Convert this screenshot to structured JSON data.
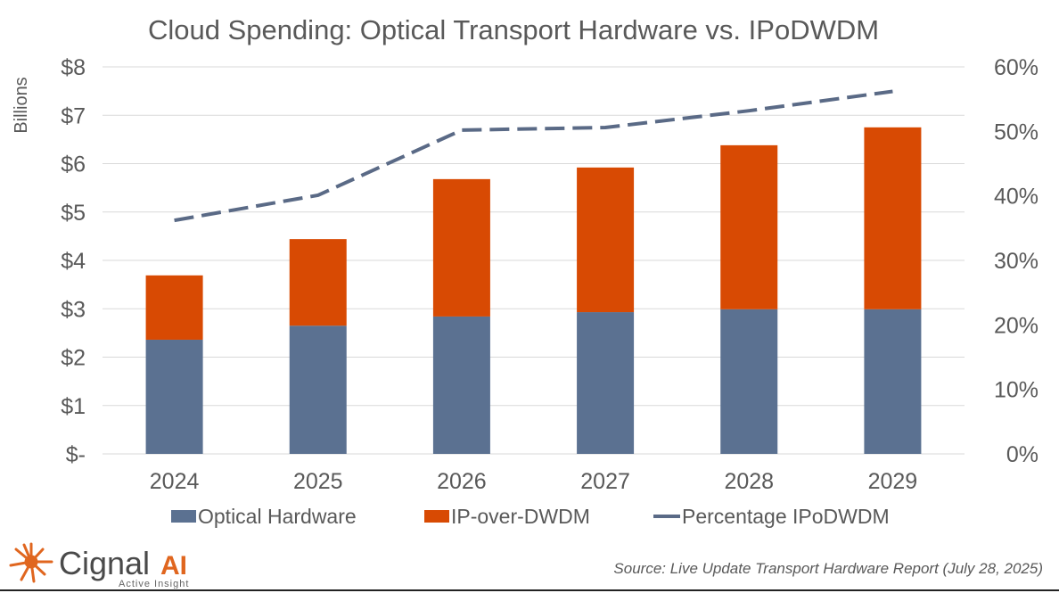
{
  "chart_data": {
    "type": "bar",
    "stacked": true,
    "title": "Cloud Spending: Optical Transport Hardware vs. IPoDWDM",
    "ylabel": "Billions",
    "ylim": [
      0,
      8
    ],
    "y_ticks": [
      "$-",
      "$1",
      "$2",
      "$3",
      "$4",
      "$5",
      "$6",
      "$7",
      "$8"
    ],
    "y2lim": [
      0,
      60
    ],
    "y2_ticks": [
      "0%",
      "10%",
      "20%",
      "30%",
      "40%",
      "50%",
      "60%"
    ],
    "grid": true,
    "legend_position": "bottom",
    "categories": [
      "2024",
      "2025",
      "2026",
      "2027",
      "2028",
      "2029"
    ],
    "series": [
      {
        "name": "Optical Hardware",
        "type": "bar",
        "axis": "left",
        "color": "#5b7191",
        "values": [
          2.36,
          2.65,
          2.84,
          2.93,
          2.99,
          2.99
        ]
      },
      {
        "name": "IP-over-DWDM",
        "type": "bar",
        "axis": "left",
        "color": "#d84a03",
        "values": [
          1.33,
          1.79,
          2.84,
          2.99,
          3.39,
          3.76
        ]
      },
      {
        "name": "Percentage IPoDWDM",
        "type": "line",
        "style": "dashed",
        "axis": "right",
        "color": "#5a6a86",
        "values": [
          36.2,
          40.1,
          50.2,
          50.6,
          53.2,
          56.2
        ]
      }
    ]
  },
  "logo": {
    "name": "Cignal",
    "suffix": "AI",
    "tagline": "Active Insight",
    "accent": "#e0661f"
  },
  "source": "Source: Live Update Transport Hardware Report (July 28, 2025)"
}
